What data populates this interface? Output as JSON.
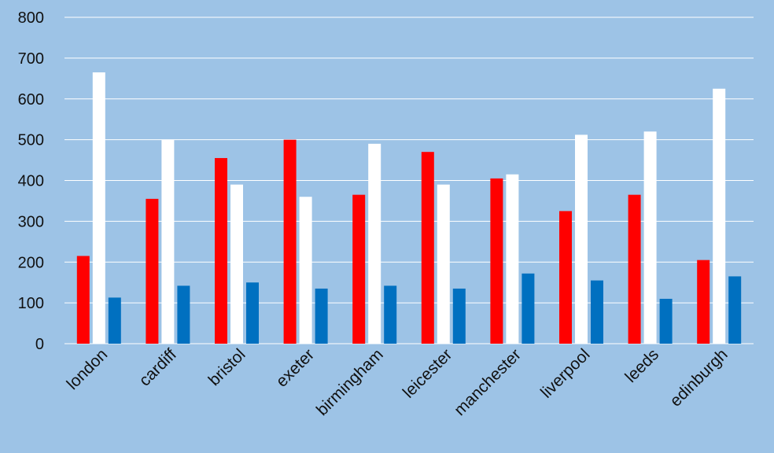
{
  "chart_data": {
    "type": "bar",
    "title": "",
    "xlabel": "",
    "ylabel": "",
    "ylim": [
      0,
      800
    ],
    "yticks": [
      0,
      100,
      200,
      300,
      400,
      500,
      600,
      700,
      800
    ],
    "grid": true,
    "legend": "none",
    "categories": [
      "london",
      "cardiff",
      "bristol",
      "exeter",
      "birmingham",
      "leicester",
      "manchester",
      "liverpool",
      "leeds",
      "edinburgh"
    ],
    "series": [
      {
        "color": "#ff0000",
        "values": [
          215,
          355,
          455,
          500,
          365,
          470,
          405,
          325,
          365,
          205
        ]
      },
      {
        "color": "#ffffff",
        "values": [
          665,
          500,
          390,
          360,
          490,
          390,
          415,
          512,
          520,
          625
        ]
      },
      {
        "color": "#0070c0",
        "values": [
          113,
          142,
          150,
          135,
          142,
          135,
          172,
          155,
          110,
          165
        ]
      }
    ],
    "background": "#9dc3e6",
    "gridColor": "#ffffff"
  }
}
